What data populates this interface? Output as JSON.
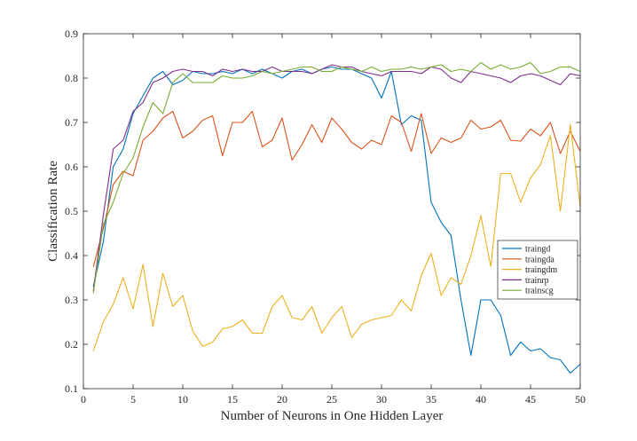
{
  "chart_data": {
    "type": "line",
    "title": "",
    "xlabel": "Number of Neurons in One Hidden Layer",
    "ylabel": "Classification Rate",
    "xlim": [
      0,
      50
    ],
    "ylim": [
      0.1,
      0.9
    ],
    "xticks": [
      0,
      5,
      10,
      15,
      20,
      25,
      30,
      35,
      40,
      45,
      50
    ],
    "yticks": [
      0.1,
      0.2,
      0.3,
      0.4,
      0.5,
      0.6,
      0.7,
      0.8,
      0.9
    ],
    "xtick_labels": [
      "0",
      "5",
      "10",
      "15",
      "20",
      "25",
      "30",
      "35",
      "40",
      "45",
      "50"
    ],
    "ytick_labels": [
      "0.1",
      "0.2",
      "0.3",
      "0.4",
      "0.5",
      "0.6",
      "0.7",
      "0.8",
      "0.9"
    ],
    "grid": false,
    "legend_position": "right",
    "x": [
      1,
      2,
      3,
      4,
      5,
      6,
      7,
      8,
      9,
      10,
      11,
      12,
      13,
      14,
      15,
      16,
      17,
      18,
      19,
      20,
      21,
      22,
      23,
      24,
      25,
      26,
      27,
      28,
      29,
      30,
      31,
      32,
      33,
      34,
      35,
      36,
      37,
      38,
      39,
      40,
      41,
      42,
      43,
      44,
      45,
      46,
      47,
      48,
      49,
      50
    ],
    "series": [
      {
        "name": "traingd",
        "color": "#0072BD",
        "values": [
          0.33,
          0.43,
          0.6,
          0.64,
          0.72,
          0.76,
          0.8,
          0.815,
          0.785,
          0.795,
          0.815,
          0.81,
          0.81,
          0.815,
          0.81,
          0.82,
          0.81,
          0.82,
          0.81,
          0.8,
          0.815,
          0.82,
          0.81,
          0.82,
          0.825,
          0.82,
          0.82,
          0.81,
          0.8,
          0.755,
          0.815,
          0.695,
          0.715,
          0.705,
          0.52,
          0.475,
          0.445,
          0.3,
          0.175,
          0.3,
          0.3,
          0.265,
          0.175,
          0.205,
          0.185,
          0.19,
          0.17,
          0.165,
          0.135,
          0.155
        ]
      },
      {
        "name": "traingda",
        "color": "#D95319",
        "values": [
          0.375,
          0.46,
          0.56,
          0.59,
          0.58,
          0.66,
          0.68,
          0.71,
          0.725,
          0.665,
          0.68,
          0.705,
          0.715,
          0.625,
          0.7,
          0.7,
          0.725,
          0.645,
          0.66,
          0.71,
          0.615,
          0.65,
          0.695,
          0.655,
          0.71,
          0.685,
          0.655,
          0.64,
          0.66,
          0.65,
          0.715,
          0.7,
          0.635,
          0.72,
          0.63,
          0.665,
          0.655,
          0.665,
          0.705,
          0.685,
          0.69,
          0.705,
          0.66,
          0.658,
          0.685,
          0.67,
          0.7,
          0.63,
          0.68,
          0.635
        ]
      },
      {
        "name": "traingdm",
        "color": "#EDB120",
        "values": [
          0.185,
          0.25,
          0.29,
          0.35,
          0.28,
          0.38,
          0.24,
          0.36,
          0.285,
          0.31,
          0.23,
          0.195,
          0.205,
          0.235,
          0.24,
          0.255,
          0.225,
          0.225,
          0.285,
          0.31,
          0.26,
          0.255,
          0.285,
          0.225,
          0.26,
          0.285,
          0.215,
          0.245,
          0.255,
          0.26,
          0.265,
          0.3,
          0.275,
          0.355,
          0.405,
          0.31,
          0.35,
          0.335,
          0.4,
          0.49,
          0.375,
          0.585,
          0.585,
          0.52,
          0.575,
          0.605,
          0.67,
          0.5,
          0.695,
          0.51
        ]
      },
      {
        "name": "trainrp",
        "color": "#7E2F8E",
        "values": [
          0.32,
          0.49,
          0.64,
          0.66,
          0.725,
          0.745,
          0.79,
          0.8,
          0.815,
          0.82,
          0.815,
          0.815,
          0.805,
          0.82,
          0.815,
          0.82,
          0.815,
          0.815,
          0.825,
          0.815,
          0.815,
          0.815,
          0.81,
          0.82,
          0.83,
          0.825,
          0.825,
          0.815,
          0.81,
          0.805,
          0.815,
          0.815,
          0.815,
          0.81,
          0.825,
          0.82,
          0.8,
          0.79,
          0.815,
          0.81,
          0.805,
          0.8,
          0.79,
          0.805,
          0.81,
          0.805,
          0.795,
          0.785,
          0.81,
          0.805
        ]
      },
      {
        "name": "trainscg",
        "color": "#77AC30",
        "values": [
          0.315,
          0.47,
          0.52,
          0.585,
          0.62,
          0.69,
          0.745,
          0.72,
          0.79,
          0.81,
          0.79,
          0.79,
          0.79,
          0.805,
          0.8,
          0.8,
          0.805,
          0.815,
          0.81,
          0.815,
          0.82,
          0.825,
          0.825,
          0.815,
          0.815,
          0.825,
          0.82,
          0.815,
          0.825,
          0.815,
          0.82,
          0.82,
          0.825,
          0.82,
          0.825,
          0.83,
          0.815,
          0.82,
          0.815,
          0.835,
          0.82,
          0.83,
          0.82,
          0.825,
          0.835,
          0.81,
          0.815,
          0.825,
          0.825,
          0.815
        ]
      }
    ]
  }
}
